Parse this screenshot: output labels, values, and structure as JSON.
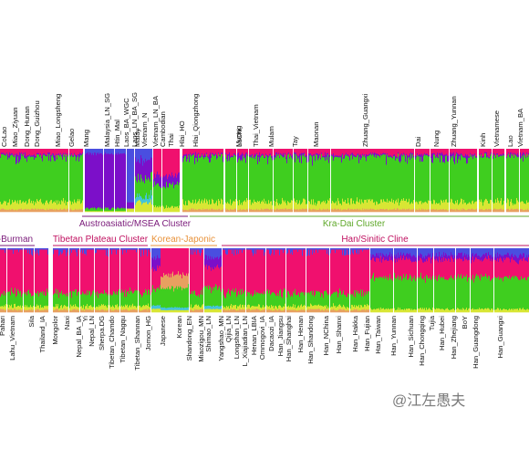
{
  "colors": {
    "green": "#3fce1f",
    "magenta": "#f0106e",
    "purple": "#7c0fc9",
    "blue": "#4a4ee0",
    "yellow": "#d8e634",
    "orange": "#e8a060",
    "cyan": "#45c4d8",
    "clusterPurple": "#7a1a7a",
    "clusterGreen": "#5fa82a",
    "clusterOrange": "#e8923a",
    "clusterRed": "#c01060"
  },
  "chart_data": {
    "type": "admixture_bar",
    "top_row": {
      "labels": [
        "CoLao",
        "Miao_Ziyuan",
        "Dong_Hunan",
        "Dong_Guizhou",
        "Miao_Longsheng",
        "Gelao",
        "Mang",
        "Malaysia_LN_SG",
        "Htin_Mal",
        "Laos_BA_WGC",
        "Laos_LN_BA_SG",
        "Vietnam_N",
        "Vietnam_LN_BA",
        "Malay",
        "Cambodian",
        "Thai",
        "Hlai_HO",
        "Hlai_Qiongzhong",
        "LaChi",
        "Muong",
        "Thai_Vietnam",
        "Mulam",
        "Tay",
        "Maonan",
        "Zhuang_Guangxi",
        "Dai",
        "Nung",
        "Zhuang_Yunnan",
        "Kinh",
        "Vietnamese",
        "Lao",
        "Vietnam_BA"
      ],
      "clusters": [
        "Austroasiatic/MSEA Cluster",
        "Kra-Dai Cluster"
      ]
    },
    "bottom_row": {
      "labels": [
        "Pahari",
        "Lahu_Vietnam",
        "Sila",
        "Thailand_IA",
        "Mongolor",
        "Naxi",
        "Nepal_BA_IA",
        "Yi",
        "Nepal_LN",
        "Sherpa.DG",
        "Tibetan_Chamdo",
        "Tibetan_Nagqu",
        "Tibetan_Shannan",
        "Jomon_HG",
        "Japanese",
        "Korean",
        "Shandong_EN",
        "Miaozigou_MN",
        "Shimao_LN",
        "Yangshao_MN",
        "Qijia_LN",
        "Longshan_LN",
        "L_Xiajiadian_LN",
        "Henan_LBIA",
        "Ommogovi_IA",
        "Dacaozi_IA",
        "Han_Jiangsu",
        "Han_Shanghai",
        "Han_Henan",
        "Han_Shandong",
        "Han_NChina",
        "Han_Shanxi",
        "Han_Hakka",
        "Han_Fujian",
        "Han_Taiwan",
        "Han_Yunnan",
        "Han_Sichuan",
        "Han_Chongqing",
        "Tujia",
        "Han_Hubei",
        "Han_Zhejiang",
        "BoY",
        "Han_Guangdong",
        "Han_Guangxi"
      ],
      "clusters": [
        "eto-Burman",
        "Tibetan Plateau Cluster",
        "Korean-Japonic",
        "Han/Sinitic Cline"
      ]
    },
    "components": [
      "green",
      "magenta",
      "purple",
      "blue",
      "yellow",
      "orange",
      "cyan"
    ]
  },
  "watermark": "@江左愚夫"
}
